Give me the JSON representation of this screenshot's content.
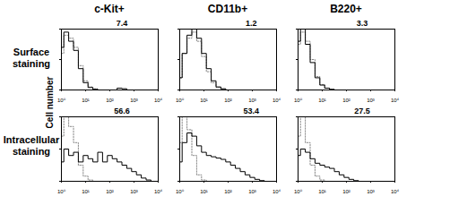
{
  "panel_grid": {
    "column_titles": [
      "c-Kit+",
      "CD11b+",
      "B220+"
    ],
    "row_labels": [
      "Surface staining",
      "Intracellular staining"
    ],
    "ylabel": "Cell number"
  },
  "chart_data": [
    {
      "type": "line",
      "log": "x",
      "tick_labels": "x",
      "x": [
        1,
        1.585,
        2.512,
        3.981,
        6.31,
        10,
        15.85,
        25.12,
        39.81,
        63.1,
        100,
        158.5,
        251.2,
        398.1,
        631,
        1000,
        1585,
        2512,
        3981,
        6310,
        10000
      ],
      "xlim": [
        1,
        10000
      ],
      "xticks": [
        {
          "value": 1,
          "label": "10⁰"
        },
        {
          "value": 10,
          "label": "10¹"
        },
        {
          "value": 100,
          "label": "10²"
        },
        {
          "value": 1000,
          "label": "10³"
        },
        {
          "value": 10000,
          "label": "10⁴"
        }
      ],
      "ylim": [
        0,
        100
      ],
      "yticks": [
        0,
        50,
        100
      ],
      "series": [
        {
          "color": "#888888",
          "line_style": "dotted",
          "values": [
            60,
            90,
            85,
            70,
            40,
            15,
            5,
            2,
            0,
            0,
            0,
            0,
            0,
            0,
            0,
            0,
            0,
            0,
            0,
            0,
            0
          ]
        },
        {
          "color": "#000000",
          "line_style": "solid",
          "values": [
            70,
            95,
            80,
            65,
            35,
            12,
            4,
            1,
            0,
            0,
            0,
            0,
            3,
            2,
            0,
            0,
            0,
            0,
            0,
            0,
            0
          ]
        }
      ],
      "gate": {
        "value": 7.4,
        "x_range": [
          10,
          10000
        ]
      }
    },
    {
      "type": "line",
      "log": "x",
      "tick_labels": "x",
      "x": [
        1,
        1.585,
        2.512,
        3.981,
        6.31,
        10,
        15.85,
        25.12,
        39.81,
        63.1,
        100,
        158.5,
        251.2,
        398.1,
        631,
        1000,
        1585,
        2512,
        3981,
        6310,
        10000
      ],
      "xlim": [
        1,
        10000
      ],
      "xticks": [
        {
          "value": 1,
          "label": "10⁰"
        },
        {
          "value": 10,
          "label": "10¹"
        },
        {
          "value": 100,
          "label": "10²"
        },
        {
          "value": 1000,
          "label": "10³"
        },
        {
          "value": 10000,
          "label": "10⁴"
        }
      ],
      "ylim": [
        0,
        100
      ],
      "yticks": [
        0,
        50,
        100
      ],
      "series": [
        {
          "color": "#888888",
          "line_style": "dotted",
          "values": [
            20,
            60,
            85,
            95,
            80,
            55,
            30,
            12,
            4,
            1,
            0,
            0,
            0,
            0,
            0,
            0,
            0,
            0,
            0,
            0,
            0
          ]
        },
        {
          "color": "#000000",
          "line_style": "solid",
          "values": [
            20,
            60,
            90,
            100,
            85,
            60,
            35,
            15,
            5,
            2,
            0,
            0,
            0,
            0,
            0,
            0,
            0,
            0,
            0,
            0,
            0
          ]
        }
      ],
      "gate": {
        "value": 1.2,
        "x_range": [
          80,
          10000
        ]
      }
    },
    {
      "type": "line",
      "log": "x",
      "tick_labels": "x",
      "x": [
        1,
        1.585,
        2.512,
        3.981,
        6.31,
        10,
        15.85,
        25.12,
        39.81,
        63.1,
        100,
        158.5,
        251.2,
        398.1,
        631,
        1000,
        1585,
        2512,
        3981,
        6310,
        10000
      ],
      "xlim": [
        1,
        10000
      ],
      "xticks": [
        {
          "value": 1,
          "label": "10⁰"
        },
        {
          "value": 10,
          "label": "10¹"
        },
        {
          "value": 100,
          "label": "10²"
        },
        {
          "value": 1000,
          "label": "10³"
        },
        {
          "value": 10000,
          "label": "10⁴"
        }
      ],
      "ylim": [
        0,
        100
      ],
      "yticks": [
        0,
        50,
        100
      ],
      "series": [
        {
          "color": "#888888",
          "line_style": "dotted",
          "values": [
            75,
            95,
            80,
            50,
            22,
            9,
            3,
            1,
            0,
            0,
            0,
            0,
            0,
            0,
            0,
            0,
            0,
            0,
            0,
            0,
            0
          ]
        },
        {
          "color": "#000000",
          "line_style": "solid",
          "values": [
            80,
            100,
            75,
            45,
            20,
            8,
            3,
            1,
            0,
            0,
            0,
            0,
            0,
            0,
            0,
            0,
            0,
            0,
            0,
            0,
            0
          ]
        }
      ],
      "gate": {
        "value": 3.3,
        "x_range": [
          20,
          10000
        ]
      }
    },
    {
      "type": "line",
      "log": "x",
      "tick_labels": "x",
      "x": [
        1,
        1.585,
        2.512,
        3.981,
        6.31,
        10,
        15.85,
        25.12,
        39.81,
        63.1,
        100,
        158.5,
        251.2,
        398.1,
        631,
        1000,
        1585,
        2512,
        3981,
        6310,
        10000
      ],
      "xlim": [
        1,
        10000
      ],
      "xticks": [
        {
          "value": 1,
          "label": "10⁰"
        },
        {
          "value": 10,
          "label": "10¹"
        },
        {
          "value": 100,
          "label": "10²"
        },
        {
          "value": 1000,
          "label": "10³"
        },
        {
          "value": 10000,
          "label": "10⁴"
        }
      ],
      "ylim": [
        0,
        100
      ],
      "yticks": [
        0,
        50,
        100
      ],
      "series": [
        {
          "color": "#888888",
          "line_style": "dotted",
          "values": [
            70,
            100,
            85,
            60,
            25,
            8,
            2,
            0,
            0,
            0,
            0,
            0,
            0,
            0,
            0,
            0,
            0,
            0,
            0,
            0,
            0
          ]
        },
        {
          "color": "#000000",
          "line_style": "solid",
          "values": [
            30,
            50,
            40,
            45,
            30,
            40,
            35,
            30,
            45,
            30,
            40,
            35,
            30,
            25,
            20,
            15,
            10,
            5,
            2,
            0,
            0
          ]
        }
      ],
      "gate": {
        "value": 56.6,
        "x_range": [
          10,
          10000
        ]
      }
    },
    {
      "type": "line",
      "log": "x",
      "tick_labels": "x",
      "x": [
        1,
        1.585,
        2.512,
        3.981,
        6.31,
        10,
        15.85,
        25.12,
        39.81,
        63.1,
        100,
        158.5,
        251.2,
        398.1,
        631,
        1000,
        1585,
        2512,
        3981,
        6310,
        10000
      ],
      "xlim": [
        1,
        10000
      ],
      "xticks": [
        {
          "value": 1,
          "label": "10⁰"
        },
        {
          "value": 10,
          "label": "10¹"
        },
        {
          "value": 100,
          "label": "10²"
        },
        {
          "value": 1000,
          "label": "10³"
        },
        {
          "value": 10000,
          "label": "10⁴"
        }
      ],
      "ylim": [
        0,
        100
      ],
      "yticks": [
        0,
        50,
        100
      ],
      "series": [
        {
          "color": "#888888",
          "line_style": "dotted",
          "values": [
            60,
            100,
            80,
            40,
            10,
            2,
            0,
            0,
            0,
            0,
            0,
            0,
            0,
            0,
            0,
            0,
            0,
            0,
            0,
            0,
            0
          ]
        },
        {
          "color": "#000000",
          "line_style": "solid",
          "values": [
            30,
            60,
            75,
            70,
            55,
            45,
            40,
            38,
            36,
            34,
            30,
            25,
            20,
            15,
            10,
            6,
            3,
            1,
            0,
            0,
            0
          ]
        }
      ],
      "gate": {
        "value": 53.4,
        "x_range": [
          80,
          10000
        ]
      }
    },
    {
      "type": "line",
      "log": "x",
      "tick_labels": "x",
      "x": [
        1,
        1.585,
        2.512,
        3.981,
        6.31,
        10,
        15.85,
        25.12,
        39.81,
        63.1,
        100,
        158.5,
        251.2,
        398.1,
        631,
        1000,
        1585,
        2512,
        3981,
        6310,
        10000
      ],
      "xlim": [
        1,
        10000
      ],
      "xticks": [
        {
          "value": 1,
          "label": "10⁰"
        },
        {
          "value": 10,
          "label": "10¹"
        },
        {
          "value": 100,
          "label": "10²"
        },
        {
          "value": 1000,
          "label": "10³"
        },
        {
          "value": 10000,
          "label": "10⁴"
        }
      ],
      "ylim": [
        0,
        100
      ],
      "yticks": [
        0,
        50,
        100
      ],
      "series": [
        {
          "color": "#888888",
          "line_style": "dotted",
          "values": [
            70,
            100,
            60,
            25,
            8,
            2,
            0,
            0,
            0,
            0,
            0,
            0,
            0,
            0,
            0,
            0,
            0,
            0,
            0,
            0,
            0
          ]
        },
        {
          "color": "#000000",
          "line_style": "solid",
          "values": [
            40,
            50,
            45,
            35,
            28,
            25,
            22,
            20,
            15,
            10,
            6,
            3,
            1,
            0,
            0,
            0,
            0,
            0,
            0,
            0,
            0
          ]
        }
      ],
      "gate": {
        "value": 27.5,
        "x_range": [
          20,
          10000
        ]
      }
    }
  ]
}
